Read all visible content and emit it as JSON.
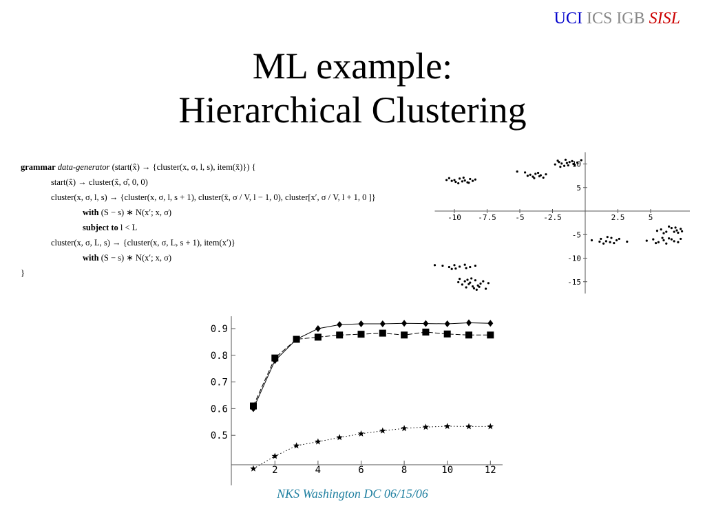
{
  "header": {
    "uci": "UCI",
    "ics": "ICS",
    "igb": "IGB",
    "sisl": "SISL",
    "title_line1": "ML example:",
    "title_line2": "Hierarchical Clustering"
  },
  "grammar": {
    "l1_kw": "grammar",
    "l1_name": "data-generator",
    "l1_rest": " (start(x̂) → {cluster(x, σ, l, s), item(x̄)}) {",
    "l2": "start(x̂) → cluster(x̂, σ̂, 0, 0)",
    "l3": "cluster(x, σ, l, s) → {cluster(x, σ, l, s + 1), cluster(x̄, σ / V, l − 1, 0), cluster[x′, σ / V, l + 1, 0 ]}",
    "l4_kw": "with",
    "l4_rest": " (S − s) ∗ N(x′; x, σ)",
    "l5_kw": "subject to",
    "l5_rest": " l < L",
    "l6": "cluster(x, σ, L, s) → {cluster(x, σ, L, s + 1), item(x′)}",
    "l7_kw": "with",
    "l7_rest": " (S − s) ∗ N(x′; x, σ)",
    "l8": "}"
  },
  "footer": {
    "text": "NKS Washington DC 06/15/06"
  },
  "chart_data": [
    {
      "type": "scatter",
      "title": "",
      "xlabel": "",
      "ylabel": "",
      "xlim": [
        -11.5,
        8
      ],
      "ylim": [
        -17.5,
        12.5
      ],
      "grid": false,
      "x_ticks": [
        "-10",
        "-7.5",
        "-5",
        "-2.5",
        "2.5",
        "5"
      ],
      "x_tick_values": [
        -10,
        -7.5,
        -5,
        -2.5,
        2.5,
        5
      ],
      "y_ticks": [
        "10",
        "5",
        "-5",
        "-10",
        "-15"
      ],
      "y_tick_values": [
        10,
        5,
        -5,
        -10,
        -15
      ],
      "points": [
        [
          -2.1,
          10.7
        ],
        [
          -1.8,
          10.1
        ],
        [
          -1.5,
          10.9
        ],
        [
          -1.2,
          10.4
        ],
        [
          -0.9,
          10.0
        ],
        [
          -2.3,
          9.9
        ],
        [
          -1.6,
          9.6
        ],
        [
          -1.0,
          10.6
        ],
        [
          -0.6,
          10.3
        ],
        [
          -1.4,
          10.2
        ],
        [
          -2.0,
          10.4
        ],
        [
          -0.8,
          9.8
        ],
        [
          -1.9,
          9.4
        ],
        [
          -1.3,
          9.7
        ],
        [
          -0.3,
          10.8
        ],
        [
          -4.6,
          8.2
        ],
        [
          -4.2,
          7.7
        ],
        [
          -3.8,
          7.9
        ],
        [
          -3.4,
          7.6
        ],
        [
          -4.0,
          7.3
        ],
        [
          -3.6,
          8.1
        ],
        [
          -3.0,
          7.8
        ],
        [
          -4.4,
          7.5
        ],
        [
          -3.2,
          7.1
        ],
        [
          -5.2,
          8.4
        ],
        [
          -3.9,
          7.0
        ],
        [
          -3.5,
          7.4
        ],
        [
          -10.4,
          7.0
        ],
        [
          -10.0,
          6.6
        ],
        [
          -9.6,
          6.9
        ],
        [
          -9.2,
          6.5
        ],
        [
          -8.8,
          6.8
        ],
        [
          -9.9,
          6.2
        ],
        [
          -9.4,
          6.3
        ],
        [
          -8.6,
          6.4
        ],
        [
          -10.2,
          6.4
        ],
        [
          -9.0,
          6.1
        ],
        [
          -8.4,
          6.7
        ],
        [
          -9.7,
          5.9
        ],
        [
          -9.3,
          7.1
        ],
        [
          -8.9,
          6.0
        ],
        [
          -10.6,
          6.6
        ],
        [
          5.8,
          -3.9
        ],
        [
          6.2,
          -4.4
        ],
        [
          6.6,
          -3.6
        ],
        [
          7.0,
          -4.1
        ],
        [
          7.3,
          -3.8
        ],
        [
          6.0,
          -4.7
        ],
        [
          6.8,
          -4.4
        ],
        [
          7.1,
          -4.6
        ],
        [
          6.4,
          -3.3
        ],
        [
          5.5,
          -4.2
        ],
        [
          6.9,
          -3.5
        ],
        [
          7.4,
          -4.3
        ],
        [
          5.2,
          -6.0
        ],
        [
          5.6,
          -6.6
        ],
        [
          6.0,
          -6.2
        ],
        [
          6.4,
          -5.8
        ],
        [
          6.8,
          -6.4
        ],
        [
          5.4,
          -6.8
        ],
        [
          6.2,
          -6.9
        ],
        [
          6.6,
          -6.0
        ],
        [
          7.1,
          -6.6
        ],
        [
          4.7,
          -6.3
        ],
        [
          5.9,
          -5.7
        ],
        [
          7.3,
          -5.9
        ],
        [
          1.2,
          -5.9
        ],
        [
          1.6,
          -6.4
        ],
        [
          2.0,
          -5.7
        ],
        [
          2.4,
          -6.2
        ],
        [
          1.4,
          -6.9
        ],
        [
          1.9,
          -6.6
        ],
        [
          2.6,
          -5.9
        ],
        [
          1.1,
          -6.5
        ],
        [
          3.2,
          -6.5
        ],
        [
          0.5,
          -6.2
        ],
        [
          2.2,
          -6.8
        ],
        [
          1.7,
          -5.5
        ],
        [
          -10.9,
          -11.6
        ],
        [
          -10.4,
          -11.9
        ],
        [
          -10.0,
          -11.5
        ],
        [
          -9.6,
          -11.8
        ],
        [
          -9.2,
          -11.4
        ],
        [
          -8.8,
          -11.9
        ],
        [
          -8.4,
          -11.6
        ],
        [
          -9.9,
          -12.2
        ],
        [
          -9.1,
          -12.1
        ],
        [
          -11.5,
          -11.5
        ],
        [
          -10.2,
          -12.3
        ],
        [
          -9.6,
          -14.4
        ],
        [
          -9.2,
          -14.9
        ],
        [
          -8.8,
          -15.2
        ],
        [
          -8.4,
          -14.7
        ],
        [
          -8.0,
          -15.4
        ],
        [
          -9.4,
          -15.6
        ],
        [
          -8.6,
          -16.0
        ],
        [
          -8.2,
          -15.8
        ],
        [
          -9.0,
          -14.6
        ],
        [
          -7.8,
          -14.9
        ],
        [
          -8.9,
          -15.5
        ],
        [
          -8.5,
          -16.4
        ],
        [
          -9.7,
          -15.1
        ],
        [
          -8.1,
          -16.1
        ],
        [
          -7.4,
          -15.3
        ],
        [
          -8.7,
          -14.3
        ],
        [
          -7.6,
          -16.5
        ],
        [
          -9.1,
          -16.2
        ],
        [
          -8.3,
          -16.7
        ]
      ]
    },
    {
      "type": "line",
      "title": "",
      "xlabel": "",
      "ylabel": "",
      "xlim": [
        0.5,
        12.5
      ],
      "ylim": [
        0.38,
        0.94
      ],
      "grid": false,
      "x_ticks": [
        "2",
        "4",
        "6",
        "8",
        "10",
        "12"
      ],
      "x_tick_values": [
        2,
        4,
        6,
        8,
        10,
        12
      ],
      "y_ticks": [
        "0.9",
        "0.8",
        "0.7",
        "0.6",
        "0.5"
      ],
      "y_tick_values": [
        0.9,
        0.8,
        0.7,
        0.6,
        0.5
      ],
      "x": [
        1,
        2,
        3,
        4,
        5,
        6,
        7,
        8,
        9,
        10,
        11,
        12
      ],
      "series": [
        {
          "marker": "diamond",
          "line": "solid",
          "values": [
            0.6,
            0.78,
            0.86,
            0.9,
            0.915,
            0.918,
            0.918,
            0.92,
            0.919,
            0.918,
            0.922,
            0.92
          ]
        },
        {
          "marker": "square",
          "line": "dashed",
          "values": [
            0.61,
            0.79,
            0.86,
            0.868,
            0.876,
            0.879,
            0.883,
            0.876,
            0.887,
            0.88,
            0.876,
            0.876
          ]
        },
        {
          "marker": "star",
          "line": "dotted",
          "values": [
            0.375,
            0.422,
            0.461,
            0.476,
            0.492,
            0.506,
            0.517,
            0.526,
            0.531,
            0.534,
            0.533,
            0.533
          ]
        }
      ],
      "colors": {
        "stroke": "#000000"
      }
    }
  ]
}
